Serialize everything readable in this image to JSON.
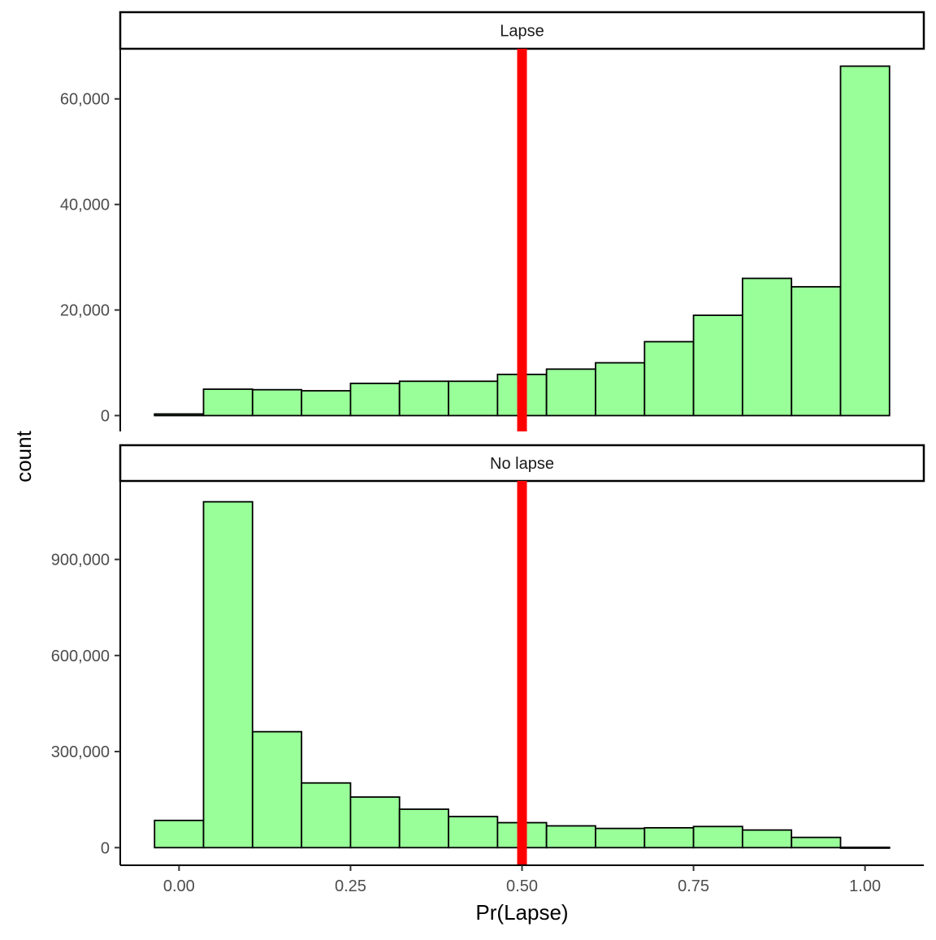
{
  "chart_data": {
    "type": "bar",
    "title": "",
    "xlabel": "Pr(Lapse)",
    "ylabel": "count",
    "x_ticks": [
      0.0,
      0.25,
      0.5,
      0.75,
      1.0
    ],
    "x_tick_labels": [
      "0.00",
      "0.25",
      "0.50",
      "0.75",
      "1.00"
    ],
    "xlim": [
      -0.0857,
      1.0857
    ],
    "bin_width": 0.0714,
    "bin_centers": [
      0.0,
      0.0714,
      0.1429,
      0.2143,
      0.2857,
      0.3571,
      0.4286,
      0.5,
      0.5714,
      0.6429,
      0.7143,
      0.7857,
      0.8571,
      0.9286,
      1.0
    ],
    "threshold": {
      "x": 0.5,
      "color": "#ff0000"
    },
    "bar_fill": "#99ff99",
    "bar_stroke": "#000000",
    "panels": [
      {
        "strip_label": "Lapse",
        "ylim": [
          -3000,
          69500
        ],
        "y_ticks": [
          0,
          20000,
          40000,
          60000
        ],
        "y_tick_labels": [
          "0",
          "20,000",
          "40,000",
          "60,000"
        ],
        "values": [
          300,
          5000,
          4900,
          4700,
          6100,
          6500,
          6500,
          7800,
          8800,
          10000,
          14000,
          19000,
          26000,
          24400,
          66200
        ]
      },
      {
        "strip_label": "No lapse",
        "ylim": [
          -55000,
          1145000
        ],
        "y_ticks": [
          0,
          300000,
          600000,
          900000
        ],
        "y_tick_labels": [
          "0",
          "300,000",
          "600,000",
          "900,000"
        ],
        "values": [
          85000,
          1080000,
          362000,
          202000,
          158000,
          120000,
          97000,
          78000,
          68000,
          60000,
          62000,
          66000,
          55000,
          32000,
          1000
        ]
      }
    ]
  }
}
